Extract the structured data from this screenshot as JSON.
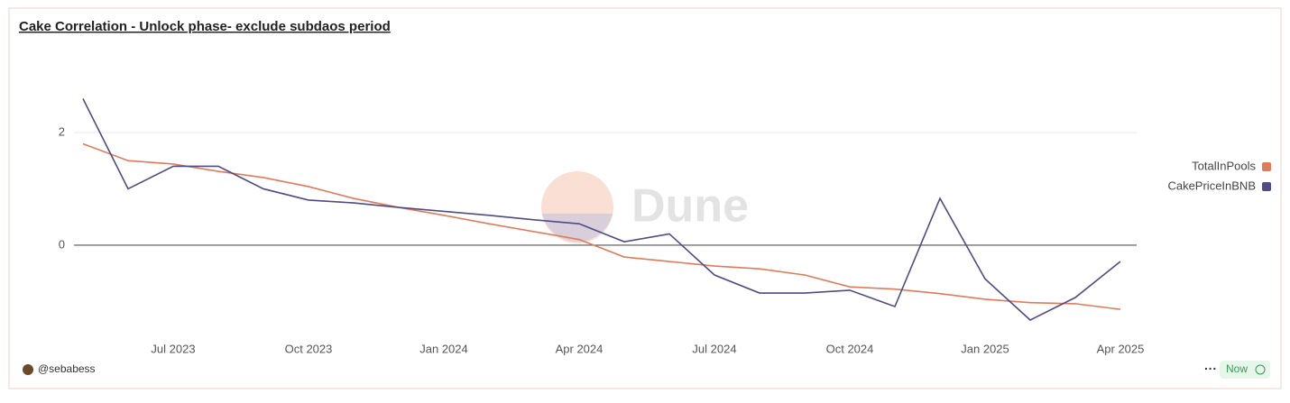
{
  "chart_data": {
    "type": "line",
    "title": "Cake Correlation - Unlock phase- exclude subdaos period",
    "x": [
      null,
      null,
      "Jul 2023",
      null,
      null,
      "Oct 2023",
      null,
      null,
      "Jan 2024",
      null,
      null,
      "Apr 2024",
      null,
      null,
      "Jul 2024",
      null,
      null,
      "Oct 2024",
      null,
      null,
      "Jan 2025",
      null,
      null,
      "Apr 2025"
    ],
    "series": [
      {
        "name": "TotalInPools",
        "color": "#e07b5a",
        "values": [
          1.8,
          1.5,
          1.44,
          1.31,
          1.2,
          1.04,
          0.83,
          0.67,
          0.53,
          0.38,
          0.24,
          0.1,
          -0.21,
          -0.29,
          -0.37,
          -0.42,
          -0.53,
          -0.74,
          -0.78,
          -0.86,
          -0.96,
          -1.02,
          -1.04,
          -1.14
        ]
      },
      {
        "name": "CakePriceInBNB",
        "color": "#4f4b86",
        "values": [
          2.6,
          1.0,
          1.4,
          1.4,
          1.0,
          0.8,
          0.75,
          0.67,
          0.6,
          0.53,
          0.45,
          0.38,
          0.06,
          0.2,
          -0.53,
          -0.85,
          -0.85,
          -0.8,
          -1.09,
          0.83,
          -0.6,
          -1.33,
          -0.93,
          -0.29
        ]
      }
    ],
    "ylim": [
      -1.65,
      3.4
    ],
    "yticks": [
      0,
      2
    ],
    "grid": true,
    "legend": "right",
    "watermark": "Dune",
    "author": "@sebabess",
    "status": "Now"
  }
}
